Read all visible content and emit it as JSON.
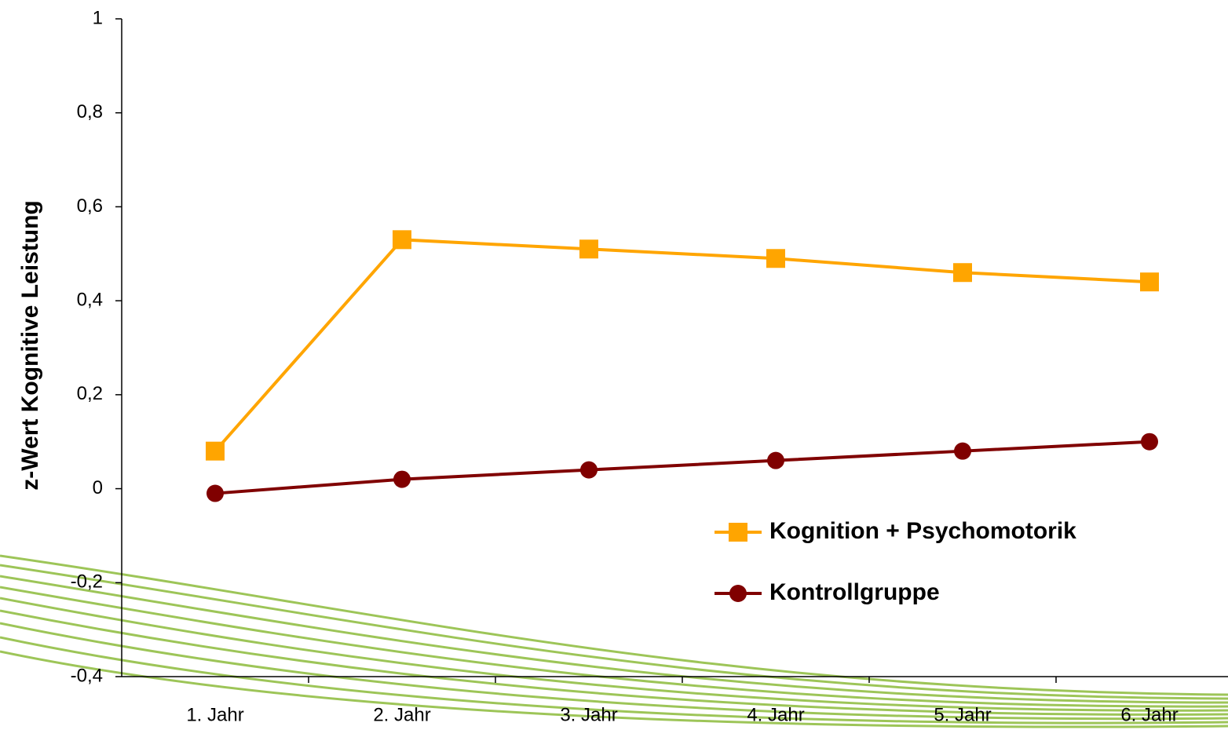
{
  "chart_data": {
    "type": "line",
    "y_label": "z-Wert Kognitive Leistung",
    "categories": [
      "1. Jahr",
      "2. Jahr",
      "3. Jahr",
      "4. Jahr",
      "5. Jahr",
      "6. Jahr"
    ],
    "series": [
      {
        "name": "Kognition + Psychomotorik",
        "color": "#ffa500",
        "marker": "square",
        "values": [
          0.08,
          0.53,
          0.51,
          0.49,
          0.46,
          0.44
        ]
      },
      {
        "name": "Kontrollgruppe",
        "color": "#800000",
        "marker": "circle",
        "values": [
          -0.01,
          0.02,
          0.04,
          0.06,
          0.08,
          0.1
        ]
      }
    ],
    "ylim": [
      -0.4,
      1
    ],
    "yticks": [
      {
        "value": -0.4,
        "label": "-0,4"
      },
      {
        "value": -0.2,
        "label": "-0,2"
      },
      0,
      {
        "value": 0.2,
        "label": "0,2"
      },
      {
        "value": 0.4,
        "label": "0,4"
      },
      {
        "value": 0.6,
        "label": "0,6"
      },
      {
        "value": 0.8,
        "label": "0,8"
      },
      1
    ],
    "grid": false
  }
}
